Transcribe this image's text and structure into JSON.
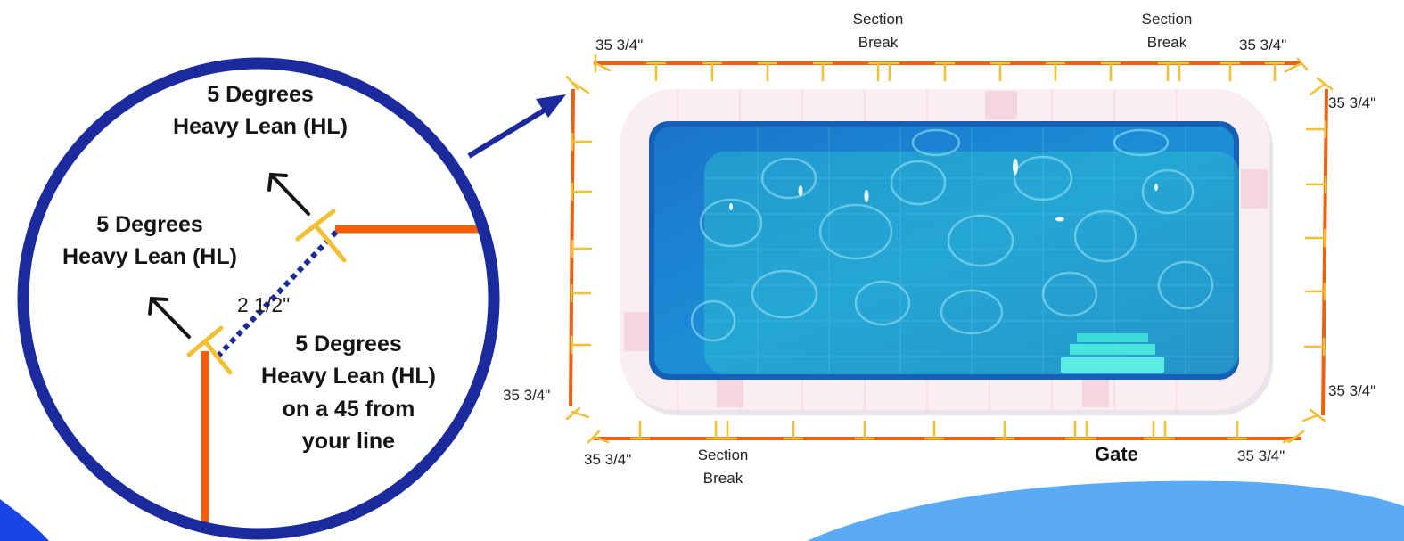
{
  "colors": {
    "fence": "#f25f0c",
    "post": "#f3c033",
    "circle_ring": "#1b2b9e",
    "arrow": "#1b2b9e",
    "dotted": "#1b2b9e",
    "blob_light": "#5aaaf6",
    "blob_dark": "#1944e6",
    "water": "#1a8fd6",
    "deck": "#fbeef1"
  },
  "diagram": {
    "measurements": {
      "top_left": "35 3/4\"",
      "top_right": "35 3/4\"",
      "right_top": "35 3/4\"",
      "right_bottom": "35 3/4\"",
      "left_bottom": "35 3/4\"",
      "bottom_left": "35 3/4\"",
      "bottom_right": "35 3/4\""
    },
    "section_breaks": {
      "top_1": [
        "Section",
        "Break"
      ],
      "top_2": [
        "Section",
        "Break"
      ],
      "bottom_1": [
        "Section",
        "Break"
      ]
    },
    "gate_label": "Gate"
  },
  "detail": {
    "label_top": [
      "5 Degrees",
      "Heavy Lean (HL)"
    ],
    "label_mid": [
      "5 Degrees",
      "Heavy Lean (HL)"
    ],
    "label_corner": [
      "5 Degrees",
      "Heavy Lean (HL)",
      "on a 45 from",
      "your line"
    ],
    "spacing": "2 1/2\""
  },
  "icons": {
    "pool": "pool-illustration",
    "pointer": "arrow-icon",
    "lean": "arrow-icon"
  }
}
